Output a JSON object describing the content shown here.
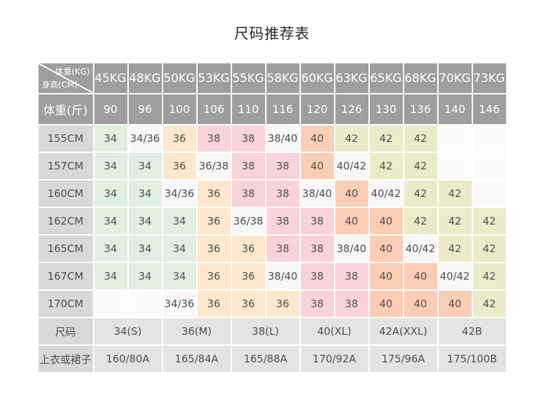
{
  "title": "尺码推荐表",
  "chart_data": {
    "type": "table",
    "title": "尺码推荐表",
    "corner": {
      "top_right": "体重(KG)",
      "bottom_left": "身高(CM)"
    },
    "columns_weight_kg": [
      "45KG",
      "48KG",
      "50KG",
      "53KG",
      "55KG",
      "58KG",
      "60KG",
      "63KG",
      "65KG",
      "68KG",
      "70KG",
      "73KG"
    ],
    "row_weight_jin": {
      "label": "体重(斤)",
      "values": [
        "90",
        "96",
        "100",
        "106",
        "110",
        "116",
        "120",
        "126",
        "130",
        "136",
        "140",
        "146"
      ]
    },
    "height_rows": [
      {
        "label": "155CM",
        "values": [
          "34",
          "34/36",
          "36",
          "38",
          "38",
          "38/40",
          "40",
          "42",
          "42",
          "42",
          "",
          ""
        ]
      },
      {
        "label": "157CM",
        "values": [
          "34",
          "34",
          "36",
          "36/38",
          "38",
          "38",
          "40",
          "40/42",
          "42",
          "42",
          "",
          ""
        ]
      },
      {
        "label": "160CM",
        "values": [
          "34",
          "34",
          "34/36",
          "36",
          "38",
          "38",
          "38/40",
          "40",
          "40/42",
          "42",
          "42",
          ""
        ]
      },
      {
        "label": "162CM",
        "values": [
          "34",
          "34",
          "34",
          "36",
          "36/38",
          "38",
          "38",
          "40",
          "40",
          "42",
          "42",
          "42"
        ]
      },
      {
        "label": "165CM",
        "values": [
          "34",
          "34",
          "34",
          "36",
          "36",
          "38",
          "38",
          "38/40",
          "40",
          "40/42",
          "42",
          "42"
        ]
      },
      {
        "label": "167CM",
        "values": [
          "34",
          "34",
          "34",
          "36",
          "36",
          "38/40",
          "38",
          "38",
          "40",
          "40",
          "40/42",
          "42"
        ]
      },
      {
        "label": "170CM",
        "values": [
          "",
          "",
          "34/36",
          "36",
          "36",
          "36",
          "38",
          "38",
          "40",
          "40",
          "40",
          "42"
        ]
      }
    ],
    "footer_rows": [
      {
        "label": "尺码",
        "values": [
          "34(S)",
          "36(M)",
          "38(L)",
          "40(XL)",
          "42A(XXL)",
          "42B"
        ],
        "colspan": 2
      },
      {
        "label": "上衣或裙子",
        "values": [
          "160/80A",
          "165/84A",
          "165/88A",
          "170/92A",
          "175/96A",
          "175/100B"
        ],
        "colspan": 2
      }
    ],
    "palette": {
      "header_bg": "#9e9e9e",
      "header_text": "#ffffff",
      "label_bg": "#d8d8d8",
      "footer_value_bg": "#e3e3e3",
      "cell_text": "#4f4f4f",
      "title_text": "#262626",
      "divider": "#ffffff",
      "sizes": {
        "34": "#e1efe3",
        "36": "#fde8cd",
        "38": "#fad3da",
        "40": "#fbcdb5",
        "42": "#ebebca"
      },
      "mixed": "#f7f7f7",
      "empty": "#fafafa"
    }
  }
}
